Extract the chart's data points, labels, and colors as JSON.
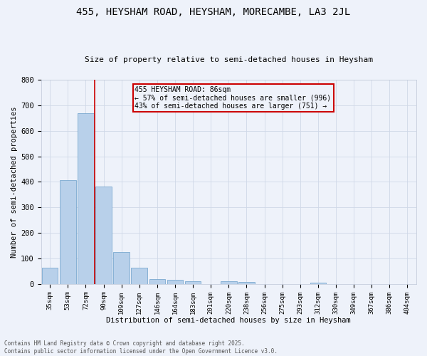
{
  "title": "455, HEYSHAM ROAD, HEYSHAM, MORECAMBE, LA3 2JL",
  "subtitle": "Size of property relative to semi-detached houses in Heysham",
  "xlabel": "Distribution of semi-detached houses by size in Heysham",
  "ylabel": "Number of semi-detached properties",
  "bar_labels": [
    "35sqm",
    "53sqm",
    "72sqm",
    "90sqm",
    "109sqm",
    "127sqm",
    "146sqm",
    "164sqm",
    "183sqm",
    "201sqm",
    "220sqm",
    "238sqm",
    "256sqm",
    "275sqm",
    "293sqm",
    "312sqm",
    "330sqm",
    "349sqm",
    "367sqm",
    "386sqm",
    "404sqm"
  ],
  "bar_values": [
    63,
    408,
    668,
    381,
    124,
    63,
    18,
    16,
    12,
    0,
    12,
    8,
    0,
    0,
    0,
    5,
    0,
    0,
    0,
    0,
    0
  ],
  "bar_color": "#b8d0ea",
  "bar_edge_color": "#6a9fca",
  "annotation_title": "455 HEYSHAM ROAD: 86sqm",
  "annotation_line2": "← 57% of semi-detached houses are smaller (996)",
  "annotation_line3": "43% of semi-detached houses are larger (751) →",
  "vline_color": "#cc0000",
  "annotation_box_edge": "#cc0000",
  "ylim": [
    0,
    800
  ],
  "yticks": [
    0,
    100,
    200,
    300,
    400,
    500,
    600,
    700,
    800
  ],
  "grid_color": "#d0d8e8",
  "background_color": "#eef2fa",
  "footer_line1": "Contains HM Land Registry data © Crown copyright and database right 2025.",
  "footer_line2": "Contains public sector information licensed under the Open Government Licence v3.0."
}
